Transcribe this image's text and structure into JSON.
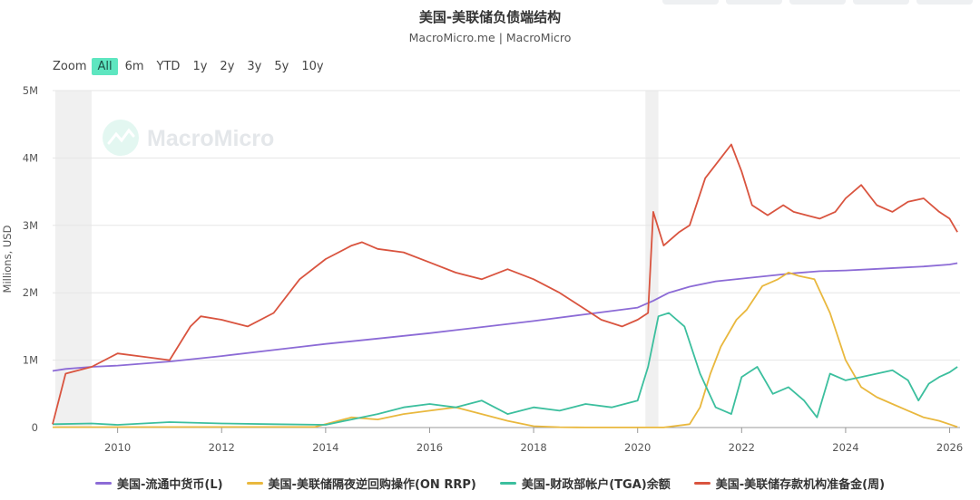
{
  "header": {
    "title": "美国-美联储负债端结构",
    "subtitle": "MacroMicro.me | MacroMicro"
  },
  "zoom": {
    "label": "Zoom",
    "options": [
      "All",
      "6m",
      "YTD",
      "1y",
      "2y",
      "3y",
      "5y",
      "10y"
    ],
    "active": "All"
  },
  "watermark": {
    "text": "MacroMicro"
  },
  "chart_data": {
    "type": "line",
    "title": "美国-美联储负债端结构",
    "subtitle": "MacroMicro.me | MacroMicro",
    "ylabel": "Millions, USD",
    "xlabel": "",
    "xlim": [
      2008.75,
      2026.2
    ],
    "ylim": [
      0,
      5000000
    ],
    "y_ticks": [
      {
        "value": 0,
        "label": "0"
      },
      {
        "value": 1000000,
        "label": "1M"
      },
      {
        "value": 2000000,
        "label": "2M"
      },
      {
        "value": 3000000,
        "label": "3M"
      },
      {
        "value": 4000000,
        "label": "4M"
      },
      {
        "value": 5000000,
        "label": "5M"
      }
    ],
    "x_ticks": [
      {
        "value": 2010,
        "label": "2010"
      },
      {
        "value": 2012,
        "label": "2012"
      },
      {
        "value": 2014,
        "label": "2014"
      },
      {
        "value": 2016,
        "label": "2016"
      },
      {
        "value": 2018,
        "label": "2018"
      },
      {
        "value": 2020,
        "label": "2020"
      },
      {
        "value": 2022,
        "label": "2022"
      },
      {
        "value": 2024,
        "label": "2024"
      },
      {
        "value": 2026,
        "label": "2026"
      }
    ],
    "shaded_periods": [
      [
        2008.8,
        2009.5
      ],
      [
        2020.15,
        2020.4
      ]
    ],
    "grid": true,
    "legend_position": "bottom",
    "series": [
      {
        "name": "美国-流通中货币(L)",
        "color": "#8c6bd6",
        "x": [
          2008.75,
          2009.0,
          2009.5,
          2010.0,
          2011.0,
          2012.0,
          2013.0,
          2014.0,
          2015.0,
          2016.0,
          2017.0,
          2018.0,
          2019.0,
          2020.0,
          2020.3,
          2020.6,
          2021.0,
          2021.5,
          2022.0,
          2022.5,
          2023.0,
          2023.5,
          2024.0,
          2024.5,
          2025.0,
          2025.5,
          2026.0,
          2026.15
        ],
        "values": [
          840000,
          870000,
          900000,
          920000,
          980000,
          1060000,
          1150000,
          1240000,
          1320000,
          1400000,
          1490000,
          1580000,
          1680000,
          1780000,
          1880000,
          2000000,
          2090000,
          2170000,
          2210000,
          2250000,
          2290000,
          2320000,
          2330000,
          2350000,
          2370000,
          2390000,
          2420000,
          2440000
        ]
      },
      {
        "name": "美国-美联储隔夜逆回购操作(ON RRP)",
        "color": "#e9b83e",
        "x": [
          2008.75,
          2013.8,
          2014.5,
          2015.0,
          2015.5,
          2016.0,
          2016.5,
          2017.0,
          2017.5,
          2018.0,
          2018.5,
          2019.0,
          2020.0,
          2020.5,
          2021.0,
          2021.2,
          2021.4,
          2021.6,
          2021.9,
          2022.1,
          2022.4,
          2022.7,
          2022.9,
          2023.1,
          2023.4,
          2023.7,
          2024.0,
          2024.3,
          2024.6,
          2024.9,
          2025.2,
          2025.5,
          2025.8,
          2026.15
        ],
        "values": [
          5000,
          10000,
          150000,
          120000,
          200000,
          250000,
          300000,
          200000,
          100000,
          20000,
          5000,
          2000,
          2000,
          2000,
          50000,
          300000,
          800000,
          1200000,
          1600000,
          1750000,
          2100000,
          2200000,
          2300000,
          2250000,
          2200000,
          1700000,
          1000000,
          600000,
          450000,
          350000,
          250000,
          150000,
          100000,
          10000
        ]
      },
      {
        "name": "美国-财政部帐户(TGA)余额",
        "color": "#3cbf9e",
        "x": [
          2008.75,
          2009.5,
          2010.0,
          2011.0,
          2012.0,
          2013.0,
          2014.0,
          2015.0,
          2015.5,
          2016.0,
          2016.5,
          2017.0,
          2017.5,
          2018.0,
          2018.5,
          2019.0,
          2019.5,
          2020.0,
          2020.2,
          2020.4,
          2020.6,
          2020.9,
          2021.2,
          2021.5,
          2021.8,
          2022.0,
          2022.3,
          2022.6,
          2022.9,
          2023.2,
          2023.45,
          2023.7,
          2024.0,
          2024.3,
          2024.6,
          2024.9,
          2025.2,
          2025.4,
          2025.6,
          2025.8,
          2026.0,
          2026.15
        ],
        "values": [
          50000,
          60000,
          40000,
          80000,
          60000,
          50000,
          40000,
          200000,
          300000,
          350000,
          300000,
          400000,
          200000,
          300000,
          250000,
          350000,
          300000,
          400000,
          900000,
          1650000,
          1700000,
          1500000,
          800000,
          300000,
          200000,
          750000,
          900000,
          500000,
          600000,
          400000,
          150000,
          800000,
          700000,
          750000,
          800000,
          850000,
          700000,
          400000,
          650000,
          750000,
          820000,
          900000
        ]
      },
      {
        "name": "美国-美联储存款机构准备金(周)",
        "color": "#d9543f",
        "x": [
          2008.75,
          2009.0,
          2009.5,
          2010.0,
          2010.5,
          2011.0,
          2011.4,
          2011.6,
          2012.0,
          2012.5,
          2013.0,
          2013.5,
          2014.0,
          2014.5,
          2014.7,
          2015.0,
          2015.5,
          2016.0,
          2016.5,
          2017.0,
          2017.5,
          2018.0,
          2018.5,
          2019.0,
          2019.3,
          2019.7,
          2020.0,
          2020.2,
          2020.3,
          2020.5,
          2020.8,
          2021.0,
          2021.3,
          2021.6,
          2021.8,
          2022.0,
          2022.2,
          2022.5,
          2022.8,
          2023.0,
          2023.5,
          2023.8,
          2024.0,
          2024.3,
          2024.6,
          2024.9,
          2025.2,
          2025.5,
          2025.8,
          2026.0,
          2026.15
        ],
        "values": [
          50000,
          800000,
          900000,
          1100000,
          1050000,
          1000000,
          1500000,
          1650000,
          1600000,
          1500000,
          1700000,
          2200000,
          2500000,
          2700000,
          2750000,
          2650000,
          2600000,
          2450000,
          2300000,
          2200000,
          2350000,
          2200000,
          2000000,
          1750000,
          1600000,
          1500000,
          1600000,
          1700000,
          3200000,
          2700000,
          2900000,
          3000000,
          3700000,
          4000000,
          4200000,
          3800000,
          3300000,
          3150000,
          3300000,
          3200000,
          3100000,
          3200000,
          3400000,
          3600000,
          3300000,
          3200000,
          3350000,
          3400000,
          3200000,
          3100000,
          2900000
        ]
      }
    ]
  }
}
